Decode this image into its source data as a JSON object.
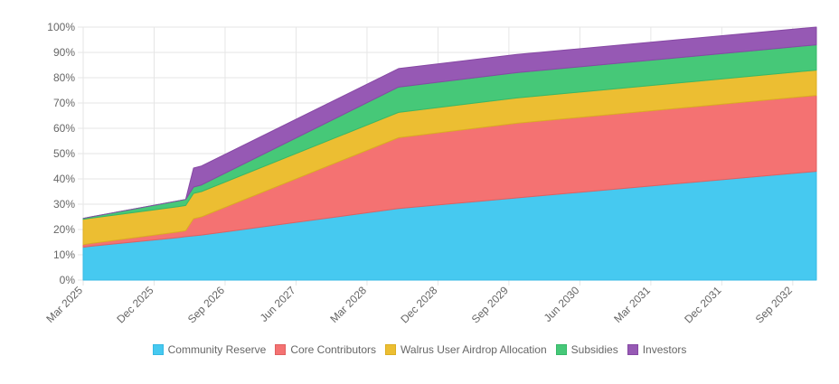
{
  "chart_data": {
    "type": "area",
    "stacked": true,
    "title": "",
    "xlabel": "",
    "ylabel": "",
    "ylim": [
      0,
      100
    ],
    "y_tick_labels": [
      "0%",
      "10%",
      "20%",
      "30%",
      "40%",
      "50%",
      "60%",
      "70%",
      "80%",
      "90%",
      "100%"
    ],
    "x_tick_labels": [
      "Mar 2025",
      "Dec 2025",
      "Sep 2026",
      "Jun 2027",
      "Mar 2028",
      "Dec 2028",
      "Sep 2029",
      "Jun 2030",
      "Mar 2031",
      "Dec 2031",
      "Sep 2032"
    ],
    "x_months": [
      0,
      1,
      12,
      13,
      14,
      15,
      40,
      55,
      93
    ],
    "series": [
      {
        "name": "Community Reserve",
        "color": "#46c9f0",
        "border": "#36b9e3",
        "values": [
          13,
          13.4,
          16.8,
          17.2,
          17.5,
          17.8,
          28.3,
          32.5,
          43
        ]
      },
      {
        "name": "Core Contributors",
        "color": "#f47272",
        "border": "#e06060",
        "values": [
          1,
          1.1,
          2.2,
          2.3,
          6.8,
          7.2,
          28,
          29.5,
          30
        ]
      },
      {
        "name": "Walrus User Airdrop Allocation",
        "color": "#ecbe32",
        "border": "#dcae22",
        "values": [
          10,
          10,
          10,
          10,
          10,
          10,
          10,
          10,
          10
        ]
      },
      {
        "name": "Subsidies",
        "color": "#46c878",
        "border": "#36b868",
        "values": [
          0.4,
          0.5,
          2.3,
          2.4,
          2.5,
          2.6,
          10,
          10,
          10
        ]
      },
      {
        "name": "Investors",
        "color": "#9659b4",
        "border": "#8649a4",
        "values": [
          0,
          0,
          0,
          0,
          7.5,
          7.5,
          7.3,
          7.2,
          7
        ]
      }
    ],
    "legend_position": "bottom"
  }
}
